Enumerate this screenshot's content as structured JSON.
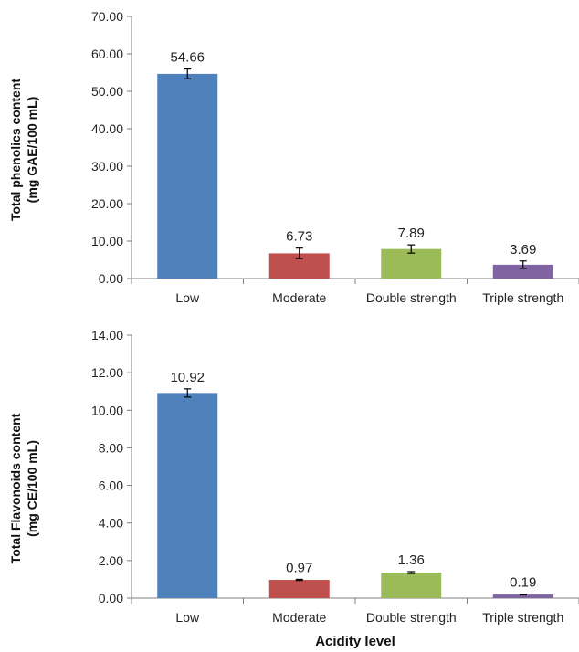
{
  "chart_data": [
    {
      "type": "bar",
      "categories": [
        "Low",
        "Moderate",
        "Double strength",
        "Triple strength"
      ],
      "values": [
        54.66,
        6.73,
        7.89,
        3.69
      ],
      "errors": [
        1.3,
        1.4,
        1.1,
        1.0
      ],
      "data_labels": [
        "54.66",
        "6.73",
        "7.89",
        "3.69"
      ],
      "colors": [
        "#4f81bd",
        "#c0504d",
        "#9bbb59",
        "#8064a2"
      ],
      "ylabel_lines": [
        "Total phenolics content",
        "(mg GAE/100  mL)"
      ],
      "xlabel": "",
      "ylim": [
        0,
        70
      ],
      "yticks": [
        "0.00",
        "10.00",
        "20.00",
        "30.00",
        "40.00",
        "50.00",
        "60.00",
        "70.00"
      ],
      "grid": false,
      "legend": "none"
    },
    {
      "type": "bar",
      "categories": [
        "Low",
        "Moderate",
        "Double strength",
        "Triple strength"
      ],
      "values": [
        10.92,
        0.97,
        1.36,
        0.19
      ],
      "errors": [
        0.22,
        0.03,
        0.05,
        0.02
      ],
      "data_labels": [
        "10.92",
        "0.97",
        "1.36",
        "0.19"
      ],
      "colors": [
        "#4f81bd",
        "#c0504d",
        "#9bbb59",
        "#8064a2"
      ],
      "ylabel_lines": [
        "Total Flavonoids content",
        "(mg CE/100  mL)"
      ],
      "xlabel": "Acidity level",
      "ylim": [
        0,
        14
      ],
      "yticks": [
        "0.00",
        "2.00",
        "4.00",
        "6.00",
        "8.00",
        "10.00",
        "12.00",
        "14.00"
      ],
      "grid": false,
      "legend": "none"
    }
  ]
}
